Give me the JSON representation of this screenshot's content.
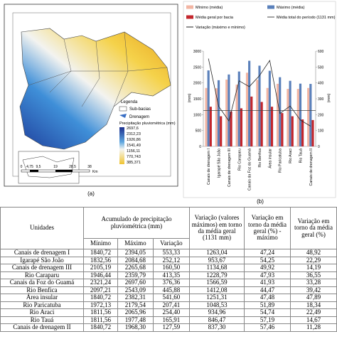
{
  "map": {
    "legend_title": "Legenda",
    "sub_basins": "Sub-bacias",
    "drainage": "Drenagem",
    "precip_title": "Precipitação pluviométrica (mm)",
    "precip_values": [
      "2697,6",
      "2312,23",
      "1926,86",
      "1541,49",
      "1156,11",
      "770,743",
      "385,371"
    ],
    "scale": [
      "0",
      "4,75",
      "9,5",
      "19",
      "28,5",
      "38"
    ],
    "scale_unit": "Km",
    "caption": "(a)"
  },
  "chart_data": {
    "type": "bar",
    "caption": "(b)",
    "ylabel": "(mm)",
    "y2label": "(mm)",
    "categories": [
      "Canais de drenagem I",
      "Igarapé São João",
      "Canais de drenagem III",
      "Rio Caraparu",
      "Canais da Foz do Guamá",
      "Rio Benfica",
      "Área insular",
      "Rio Paricatuba",
      "Rio Araci",
      "Rio Tauá",
      "Canais de drenagem II"
    ],
    "series": [
      {
        "name": "Mínimo (média)",
        "color": "#f2b5a3",
        "values": [
          1840.72,
          1832.56,
          2105.19,
          1946.44,
          2321.24,
          2097.21,
          1840.72,
          1972.13,
          1811.56,
          1811.56,
          1840.72
        ]
      },
      {
        "name": "Máximo (média)",
        "color": "#5a80bb",
        "values": [
          2394.05,
          2084.68,
          2265.68,
          2359.79,
          2697.6,
          2543.09,
          2382.31,
          2179.54,
          2065.96,
          1977.48,
          1968.3
        ]
      },
      {
        "name": "Média geral por bacia",
        "color": "#c3262c",
        "values": [
          1250,
          950,
          1100,
          1200,
          1570,
          1400,
          1250,
          1050,
          950,
          850,
          830
        ]
      },
      {
        "name": "Variação (máximo e mínimo)",
        "color": "#222222",
        "type": "line",
        "axis": "y2",
        "values": [
          553.33,
          252.12,
          160.5,
          413.35,
          376.36,
          445.88,
          541.6,
          207.41,
          254.4,
          165.91,
          127.59
        ]
      }
    ],
    "reference_line": {
      "name": "Média total do período (1131 mm)",
      "value": 1131,
      "color": "#444444"
    },
    "ylim": [
      0,
      3000
    ],
    "yticks": [
      0,
      500,
      1000,
      1500,
      2000,
      2500,
      3000
    ],
    "y2lim": [
      0,
      600
    ],
    "y2ticks": [
      0,
      100,
      200,
      300,
      400,
      500,
      600
    ]
  },
  "table": {
    "header": [
      "Unidades",
      "Acumulado de precipitação pluviométrica (mm)",
      "Variação (valores máximos) em torno da média geral (1131 mm)",
      "Variação em torno da média geral (%) - máximo",
      "Variação em torno da média geral (%)"
    ],
    "subheader": [
      "Mínimo",
      "Máximo",
      "Variação"
    ],
    "rows": [
      [
        "Canais de drenagem I",
        "1840,72",
        "2394,05",
        "553,33",
        "1263,04",
        "47,24",
        "48,92"
      ],
      [
        "Igarapé São João",
        "1832,56",
        "2084,68",
        "252,12",
        "953,67",
        "54,25",
        "22,29"
      ],
      [
        "Canais de drenagem III",
        "2105,19",
        "2265,68",
        "160,50",
        "1134,68",
        "49,92",
        "14,19"
      ],
      [
        "Rio Caraparu",
        "1946,44",
        "2359,79",
        "413,35",
        "1228,79",
        "47,93",
        "36,55"
      ],
      [
        "Canais da Foz do Guamá",
        "2321,24",
        "2697,60",
        "376,36",
        "1566,59",
        "41,93",
        "33,28"
      ],
      [
        "Rio Benfica",
        "2097,21",
        "2543,09",
        "445,88",
        "1412,08",
        "44,47",
        "39,42"
      ],
      [
        "Área insular",
        "1840,72",
        "2382,31",
        "541,60",
        "1251,31",
        "47,48",
        "47,89"
      ],
      [
        "Rio Paricatuba",
        "1972,13",
        "2179,54",
        "207,41",
        "1048,53",
        "51,89",
        "18,34"
      ],
      [
        "Rio Araci",
        "1811,56",
        "2065,96",
        "254,40",
        "934,96",
        "54,74",
        "22,49"
      ],
      [
        "Rio Tauá",
        "1811,56",
        "1977,48",
        "165,91",
        "846,47",
        "57,19",
        "14,67"
      ],
      [
        "Canais de drenagem II",
        "1840,72",
        "1968,30",
        "127,59",
        "837,30",
        "57,46",
        "11,28"
      ]
    ]
  }
}
